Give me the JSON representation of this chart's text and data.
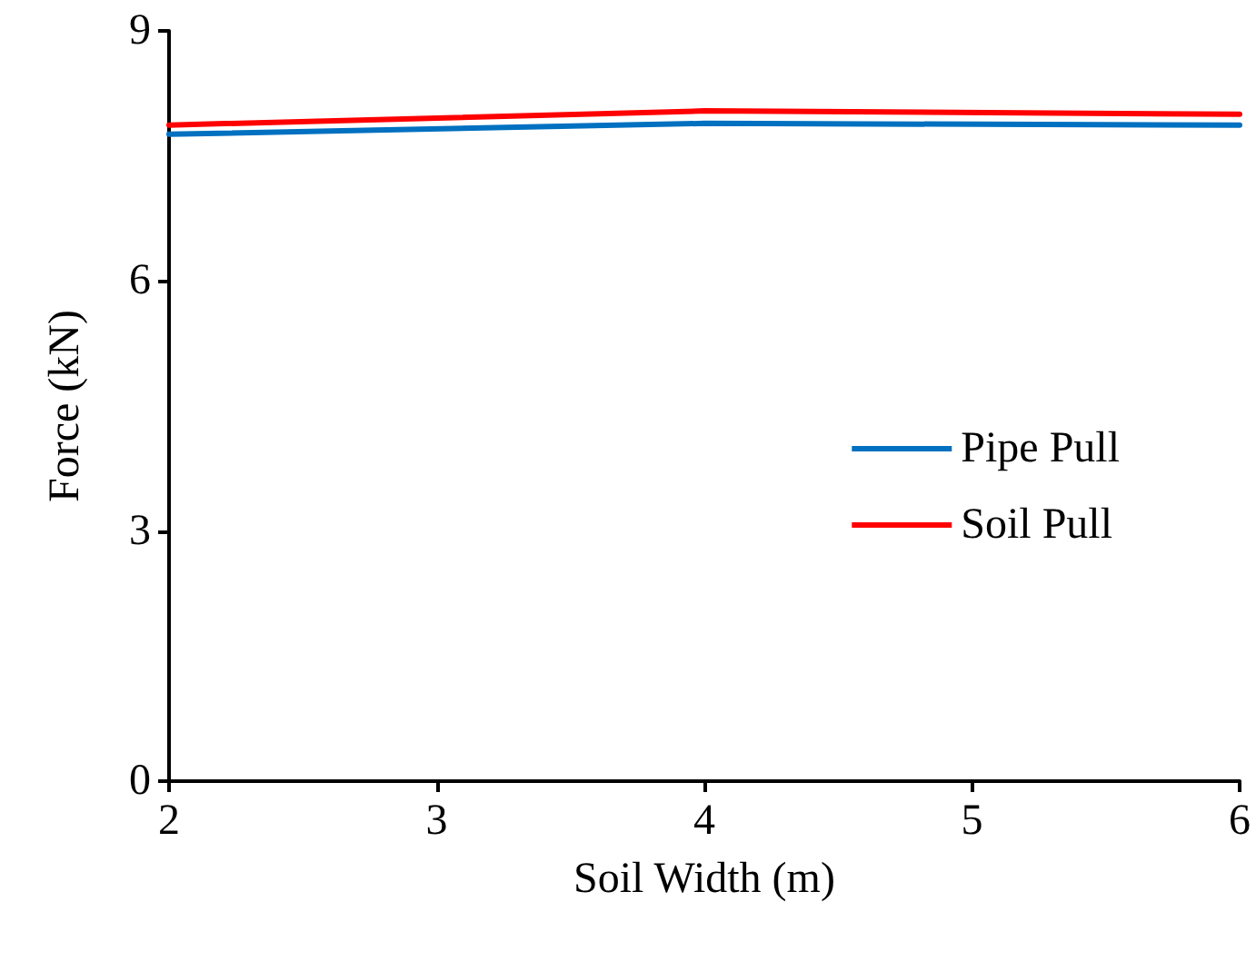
{
  "chart_data": {
    "type": "line",
    "xlabel": "Soil Width (m)",
    "ylabel": "Force (kN)",
    "x": [
      2,
      4,
      6
    ],
    "series": [
      {
        "name": "Pipe Pull",
        "color": "#0070c0",
        "values": [
          7.76,
          7.89,
          7.87
        ]
      },
      {
        "name": "Soil Pull",
        "color": "#ff0000",
        "values": [
          7.87,
          8.04,
          8.0
        ]
      }
    ],
    "xlim": [
      2,
      6
    ],
    "xticks": [
      2,
      3,
      4,
      5,
      6
    ],
    "ylim": [
      0,
      9
    ],
    "yticks": [
      0,
      3,
      6,
      9
    ],
    "grid": false,
    "legend": "right",
    "marker": "none",
    "line_style": "solid"
  }
}
